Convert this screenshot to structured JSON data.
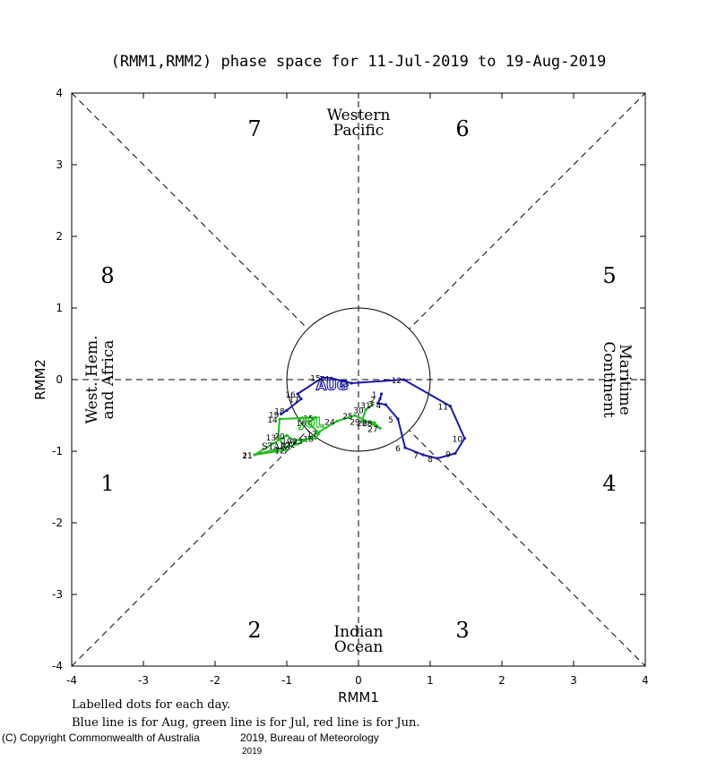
{
  "chart_data": {
    "type": "line",
    "title": "(RMM1,RMM2) phase space for 11-Jul-2019 to 19-Aug-2019",
    "xlabel": "RMM1",
    "ylabel": "RMM2",
    "xlim": [
      -4,
      4
    ],
    "ylim": [
      -4,
      4
    ],
    "xticks": [
      "-4",
      "-3",
      "-2",
      "-1",
      "0",
      "1",
      "2",
      "3",
      "4"
    ],
    "yticks": [
      "-4",
      "-3",
      "-2",
      "-1",
      "0",
      "1",
      "2",
      "3",
      "4"
    ],
    "phases": [
      {
        "label": "1",
        "x": -3.5,
        "y": -1.45
      },
      {
        "label": "2",
        "x": -1.45,
        "y": -3.5
      },
      {
        "label": "3",
        "x": 1.45,
        "y": -3.5
      },
      {
        "label": "4",
        "x": 3.5,
        "y": -1.45
      },
      {
        "label": "5",
        "x": 3.5,
        "y": 1.45
      },
      {
        "label": "6",
        "x": 1.45,
        "y": 3.5
      },
      {
        "label": "7",
        "x": -1.45,
        "y": 3.5
      },
      {
        "label": "8",
        "x": -3.5,
        "y": 1.45
      }
    ],
    "regions": {
      "top": [
        "Western",
        "Pacific"
      ],
      "bottom": [
        "Indian",
        "Ocean"
      ],
      "left": [
        "West. Hem.",
        "and Africa"
      ],
      "right": [
        "Maritime",
        "Continent"
      ]
    },
    "series": [
      {
        "name": "Jul",
        "color": "#22bb22",
        "points": [
          {
            "day": "11",
            "x": -1.45,
            "y": -1.05
          },
          {
            "day": "12",
            "x": -1.0,
            "y": -0.98
          },
          {
            "day": "13",
            "x": -1.12,
            "y": -0.8
          },
          {
            "day": "14",
            "x": -1.1,
            "y": -0.55
          },
          {
            "day": "15",
            "x": -0.6,
            "y": -0.53
          },
          {
            "day": "16",
            "x": -0.7,
            "y": -0.6
          },
          {
            "day": "17",
            "x": -0.55,
            "y": -0.75
          },
          {
            "day": "18",
            "x": -0.6,
            "y": -0.82
          },
          {
            "day": "19",
            "x": -0.9,
            "y": -0.85
          },
          {
            "day": "20",
            "x": -1.0,
            "y": -0.78
          },
          {
            "day": "21",
            "x": -1.45,
            "y": -1.05
          },
          {
            "day": "22",
            "x": -0.85,
            "y": -0.9
          },
          {
            "day": "23",
            "x": -0.75,
            "y": -0.85
          },
          {
            "day": "24",
            "x": -0.3,
            "y": -0.58
          },
          {
            "day": "25",
            "x": -0.05,
            "y": -0.5
          },
          {
            "day": "26",
            "x": 0.15,
            "y": -0.6
          },
          {
            "day": "27",
            "x": 0.3,
            "y": -0.68
          },
          {
            "day": "28",
            "x": 0.22,
            "y": -0.6
          },
          {
            "day": "29",
            "x": 0.05,
            "y": -0.58
          },
          {
            "day": "30",
            "x": 0.1,
            "y": -0.42
          },
          {
            "day": "31",
            "x": 0.2,
            "y": -0.35
          }
        ]
      },
      {
        "name": "Aug",
        "color": "#1a1aaa",
        "points": [
          {
            "day": "1",
            "x": 0.32,
            "y": -0.2
          },
          {
            "day": "2",
            "x": 0.3,
            "y": -0.27
          },
          {
            "day": "3",
            "x": 0.27,
            "y": -0.33
          },
          {
            "day": "4",
            "x": 0.38,
            "y": -0.35
          },
          {
            "day": "5",
            "x": 0.55,
            "y": -0.55
          },
          {
            "day": "6",
            "x": 0.65,
            "y": -0.95
          },
          {
            "day": "7",
            "x": 0.9,
            "y": -1.05
          },
          {
            "day": "8",
            "x": 1.1,
            "y": -1.1
          },
          {
            "day": "9",
            "x": 1.35,
            "y": -1.03
          },
          {
            "day": "10",
            "x": 1.48,
            "y": -0.82
          },
          {
            "day": "11",
            "x": 1.28,
            "y": -0.37
          },
          {
            "day": "12",
            "x": 0.63,
            "y": 0.0
          },
          {
            "day": "13",
            "x": -0.1,
            "y": -0.05
          },
          {
            "day": "14",
            "x": -0.38,
            "y": 0.02
          },
          {
            "day": "15",
            "x": -0.5,
            "y": 0.03
          },
          {
            "day": "16",
            "x": -0.85,
            "y": -0.2
          },
          {
            "day": "17",
            "x": -0.8,
            "y": -0.27
          },
          {
            "day": "18",
            "x": -1.0,
            "y": -0.43
          },
          {
            "day": "19",
            "x": -1.08,
            "y": -0.48
          }
        ]
      }
    ],
    "month_labels": [
      {
        "text": "JUL",
        "x": -0.65,
        "y": -0.6,
        "color": "#22bb22"
      },
      {
        "text": "AUG",
        "x": -0.37,
        "y": -0.08,
        "color": "#1a1aaa"
      }
    ],
    "start_label": "START",
    "footer_line_1": "Labelled dots for each day.",
    "footer_line_2": "Blue line is for Aug, green line is for Jul, red line is for Jun.",
    "copyright_left": "(C) Copyright Commonwealth of Australia",
    "copyright_right": "2019, Bureau of Meteorology",
    "copyright_year": "2019"
  }
}
